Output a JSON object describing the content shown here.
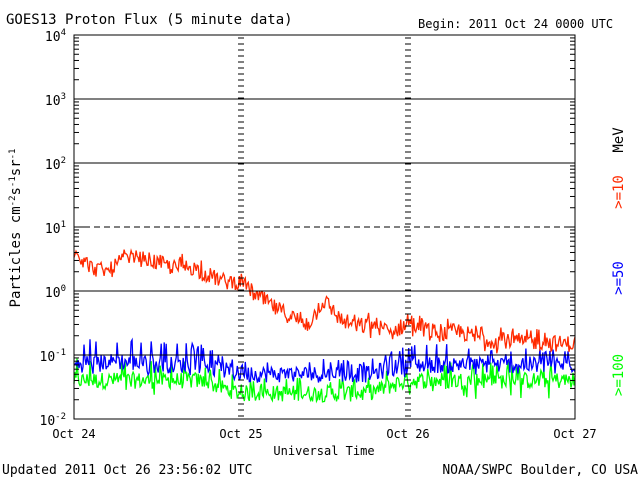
{
  "chart_data": {
    "type": "line",
    "title": "GOES13 Proton Flux (5 minute data)",
    "begin_label": "Begin: 2011 Oct 24 0000 UTC",
    "xlabel": "Universal Time",
    "ylabel": "Particles cm⁻²s⁻¹sr⁻¹",
    "ylabel_parts": {
      "base": "Particles cm",
      "e1": "-2",
      "mid1": "s",
      "e2": "-1",
      "mid2": "sr",
      "e3": "-1"
    },
    "y_scale": "log",
    "ylim": [
      0.01,
      10000
    ],
    "x_ticks": [
      "Oct 24",
      "Oct 25",
      "Oct 26",
      "Oct 27"
    ],
    "y_ticks": [
      {
        "value": 10000,
        "base": "10",
        "exp": "4"
      },
      {
        "value": 1000,
        "base": "10",
        "exp": "3"
      },
      {
        "value": 100,
        "base": "10",
        "exp": "2"
      },
      {
        "value": 10,
        "base": "10",
        "exp": "1"
      },
      {
        "value": 1,
        "base": "10",
        "exp": "0"
      },
      {
        "value": 0.1,
        "base": "10",
        "exp": "-1"
      },
      {
        "value": 0.01,
        "base": "10",
        "exp": "-2"
      }
    ],
    "thresholds": [
      {
        "value": 1000,
        "style": "solid"
      },
      {
        "value": 100,
        "style": "solid"
      },
      {
        "value": 10,
        "style": "dashed"
      },
      {
        "value": 1,
        "style": "solid"
      },
      {
        "value": 0.1,
        "style": "solid"
      }
    ],
    "grid": false,
    "unit_label": "MeV",
    "series": [
      {
        "name": ">=10",
        "color": "#ff2a00",
        "x": [
          0,
          0.1,
          0.2,
          0.3,
          0.4,
          0.5,
          0.6,
          0.7,
          0.8,
          0.9,
          1.0,
          1.1,
          1.2,
          1.3,
          1.4,
          1.5,
          1.6,
          1.7,
          1.8,
          1.9,
          2.0,
          2.1,
          2.2,
          2.3,
          2.4,
          2.5,
          2.6,
          2.7,
          2.8,
          2.9,
          3.0
        ],
        "values": [
          4.2,
          2.4,
          1.9,
          3.3,
          3.2,
          2.8,
          2.3,
          2.4,
          1.8,
          1.4,
          1.4,
          0.8,
          0.55,
          0.4,
          0.3,
          0.7,
          0.35,
          0.28,
          0.3,
          0.22,
          0.32,
          0.26,
          0.21,
          0.24,
          0.19,
          0.17,
          0.17,
          0.16,
          0.16,
          0.15,
          0.15
        ],
        "low": [
          4.0,
          2.0,
          1.5,
          2.9,
          2.7,
          2.2,
          1.8,
          1.7,
          1.3,
          1.1,
          1.1,
          0.6,
          0.4,
          0.28,
          0.2,
          0.35,
          0.22,
          0.16,
          0.16,
          0.14,
          0.15,
          0.13,
          0.12,
          0.12,
          0.11,
          0.1,
          0.1,
          0.1,
          0.1,
          0.1,
          0.1
        ],
        "high": [
          4.4,
          3.0,
          2.5,
          3.7,
          3.8,
          3.4,
          3.0,
          5.0,
          2.3,
          1.9,
          1.8,
          1.1,
          0.8,
          0.65,
          0.45,
          1.0,
          0.55,
          0.45,
          0.5,
          0.35,
          0.45,
          0.4,
          0.35,
          0.4,
          0.3,
          0.28,
          0.3,
          0.25,
          0.26,
          0.24,
          0.24
        ]
      },
      {
        "name": ">=50",
        "color": "#0000ff",
        "x": [
          0,
          0.25,
          0.5,
          0.75,
          1.0,
          1.25,
          1.5,
          1.75,
          2.0,
          2.25,
          2.5,
          2.75,
          3.0
        ],
        "values": [
          0.07,
          0.08,
          0.07,
          0.07,
          0.05,
          0.05,
          0.05,
          0.05,
          0.07,
          0.07,
          0.07,
          0.07,
          0.07
        ],
        "low": [
          0.045,
          0.045,
          0.045,
          0.045,
          0.045,
          0.045,
          0.045,
          0.045,
          0.045,
          0.045,
          0.045,
          0.045,
          0.045
        ],
        "high": [
          0.18,
          0.18,
          0.17,
          0.16,
          0.08,
          0.08,
          0.09,
          0.08,
          0.15,
          0.15,
          0.13,
          0.13,
          0.12
        ]
      },
      {
        "name": ">=100",
        "color": "#00ff00",
        "x": [
          0,
          0.25,
          0.5,
          0.75,
          1.0,
          1.25,
          1.5,
          1.75,
          2.0,
          2.25,
          2.5,
          2.75,
          3.0
        ],
        "values": [
          0.04,
          0.04,
          0.04,
          0.04,
          0.025,
          0.025,
          0.025,
          0.025,
          0.04,
          0.04,
          0.04,
          0.04,
          0.04
        ],
        "low": [
          0.02,
          0.02,
          0.02,
          0.02,
          0.02,
          0.02,
          0.02,
          0.02,
          0.02,
          0.02,
          0.02,
          0.02,
          0.02
        ],
        "high": [
          0.09,
          0.09,
          0.08,
          0.08,
          0.045,
          0.045,
          0.045,
          0.045,
          0.08,
          0.08,
          0.08,
          0.08,
          0.08
        ]
      }
    ]
  },
  "footer": {
    "updated": "Updated 2011 Oct 26 23:56:02 UTC",
    "credit": "NOAA/SWPC Boulder, CO USA"
  }
}
